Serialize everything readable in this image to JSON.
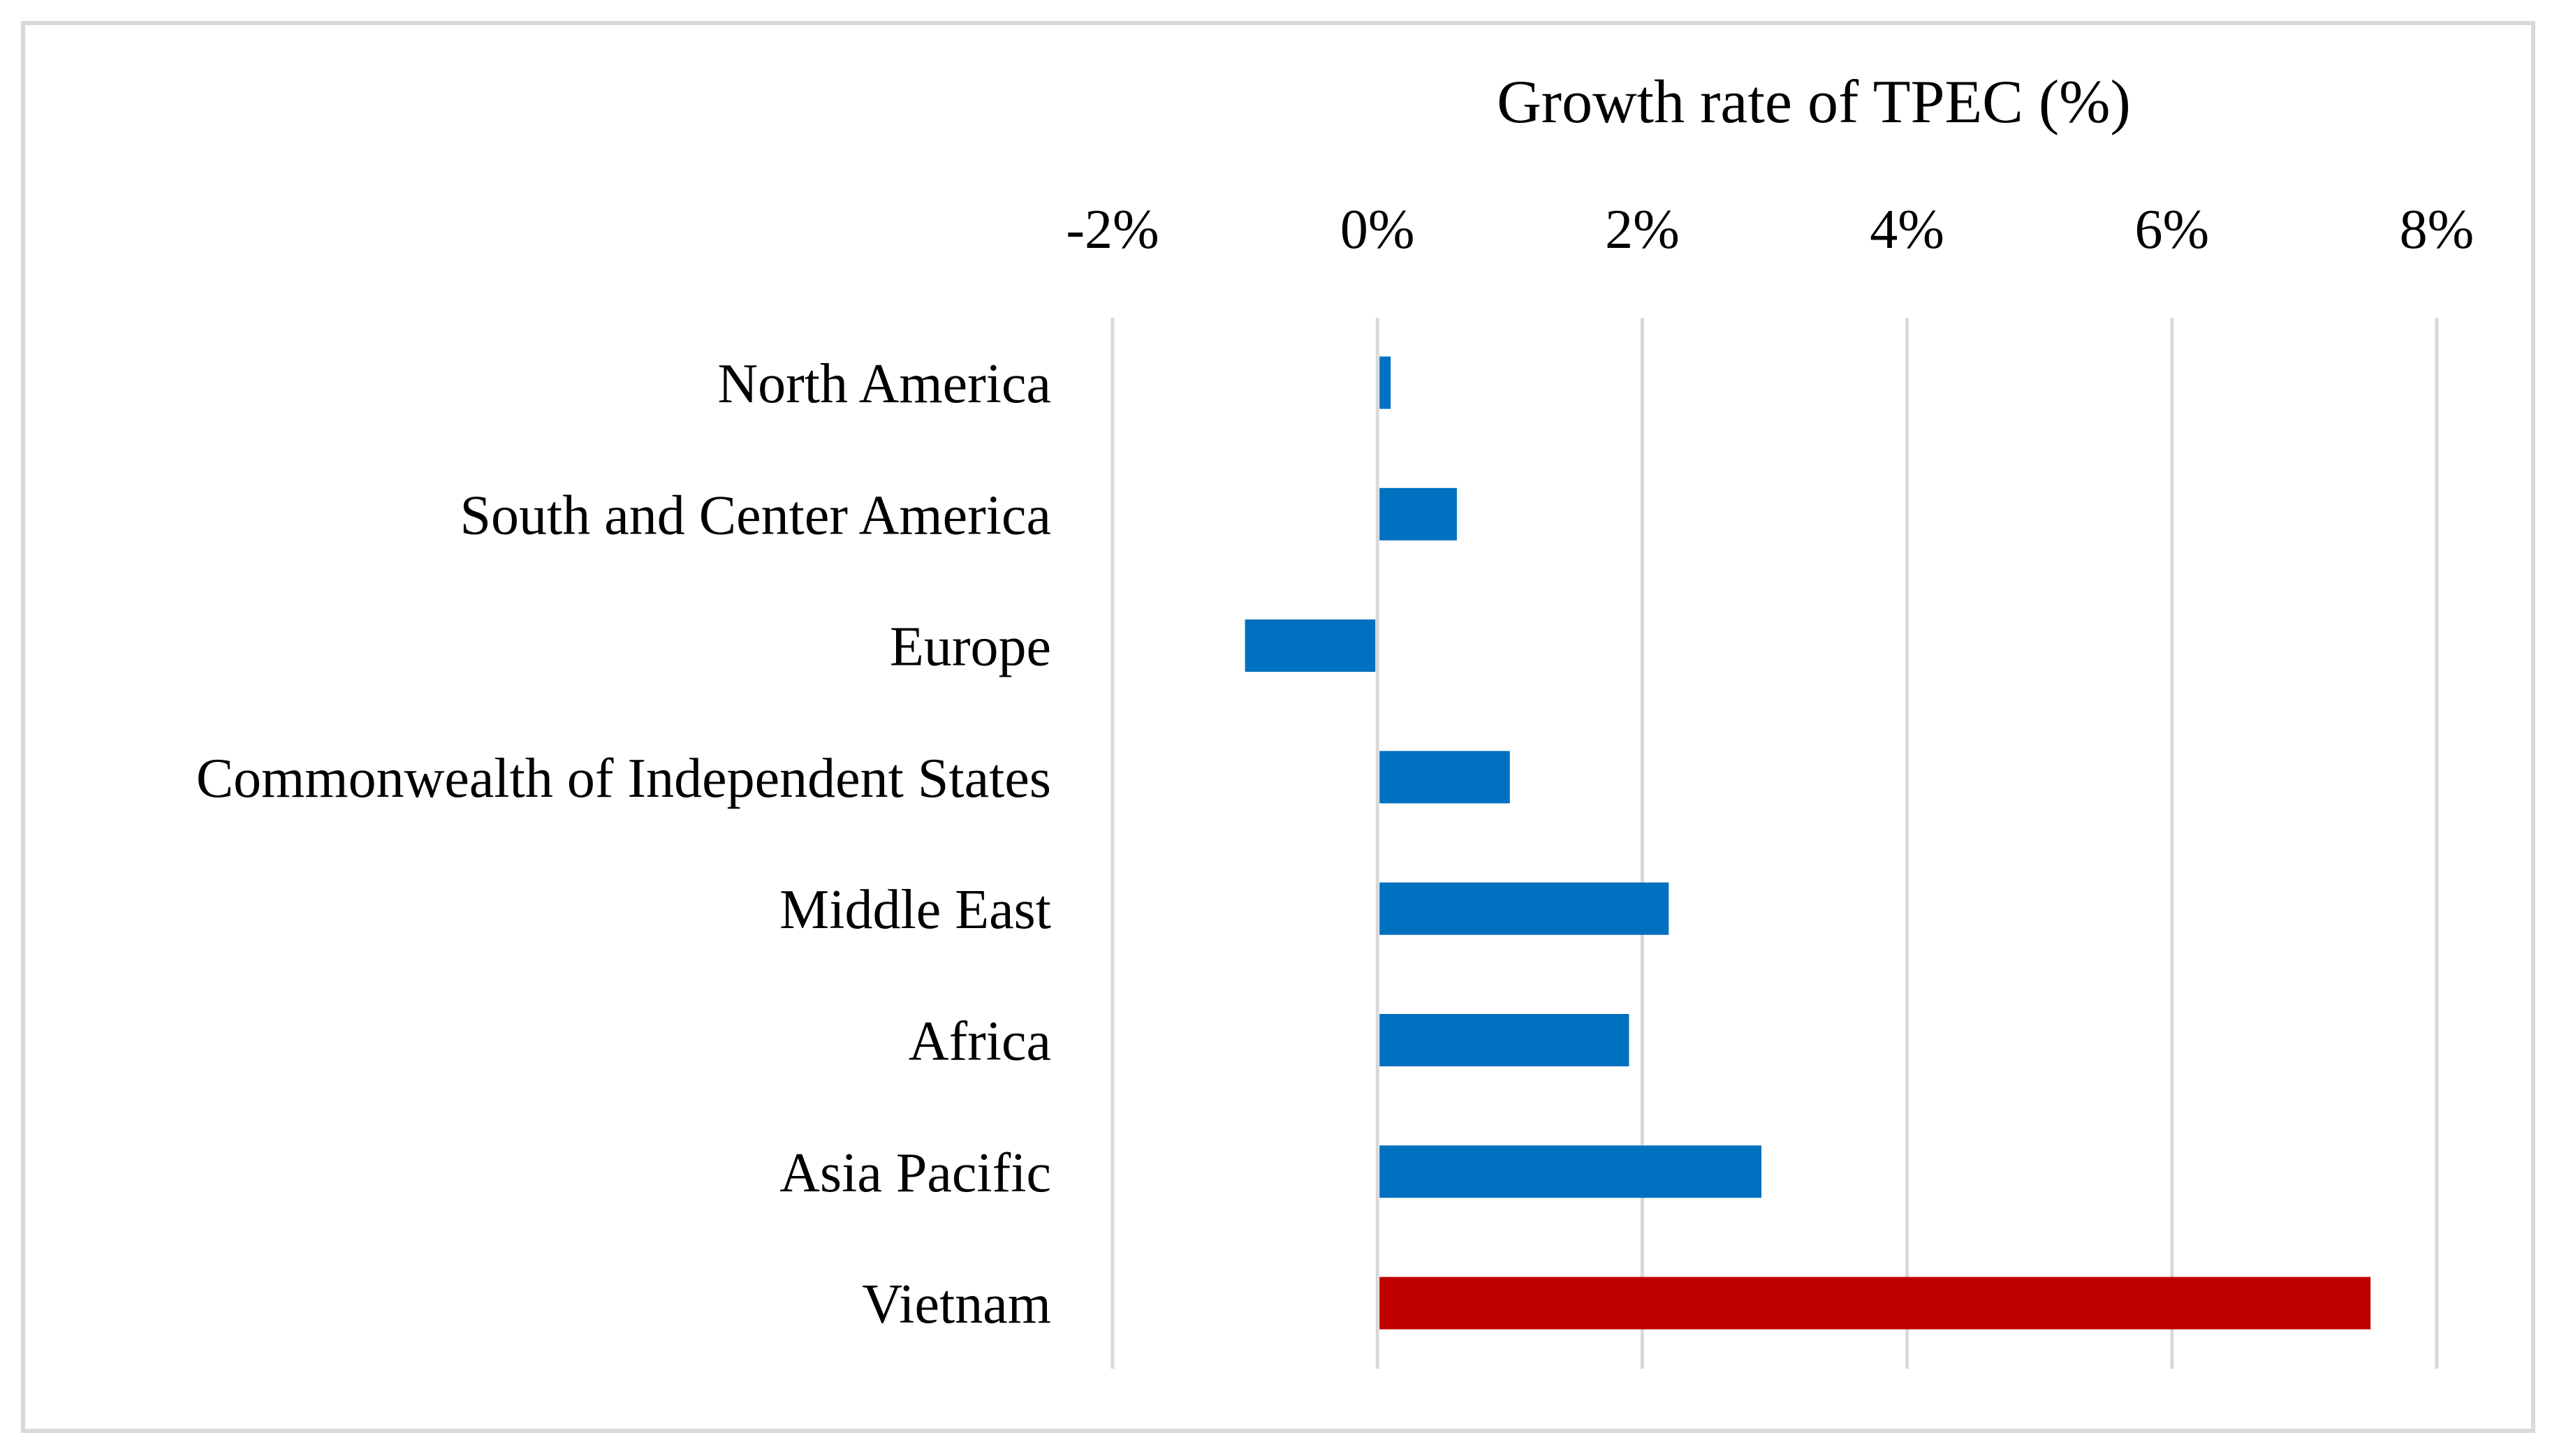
{
  "chart_data": {
    "type": "bar",
    "orientation": "horizontal",
    "title": "Growth rate of TPEC (%)",
    "xlabel": "Growth rate of TPEC (%)",
    "ylabel": "",
    "xlim": [
      -2,
      8
    ],
    "x_ticks": [
      -2,
      0,
      2,
      4,
      6,
      8
    ],
    "x_tick_labels": [
      "-2%",
      "0%",
      "2%",
      "4%",
      "6%",
      "8%"
    ],
    "x_axis_position": "top",
    "grid": true,
    "legend": "none",
    "categories": [
      "North America",
      "South and Center America",
      "Europe",
      "Commonwealth of Independent States",
      "Middle East",
      "Africa",
      "Asia Pacific",
      "Vietnam"
    ],
    "values": [
      0.1,
      0.6,
      -1.0,
      1.0,
      2.2,
      1.9,
      2.9,
      7.5
    ],
    "colors": [
      "#0070c0",
      "#0070c0",
      "#0070c0",
      "#0070c0",
      "#0070c0",
      "#0070c0",
      "#0070c0",
      "#c00000"
    ]
  },
  "style": {
    "gridline_color": "#d9d9d9",
    "border_color": "#d9d9d9",
    "primary_bar_color": "#0070c0",
    "highlight_bar_color": "#c00000"
  }
}
